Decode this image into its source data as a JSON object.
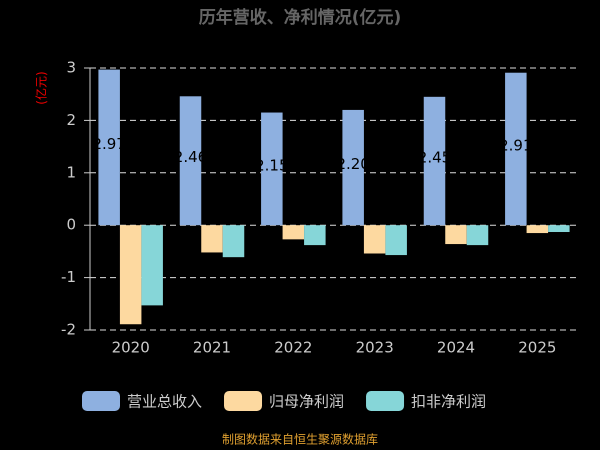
{
  "chart_data": {
    "type": "bar",
    "title": "历年营收、净利情况(亿元)",
    "y_label": "(亿元)",
    "categories": [
      "2020",
      "2021",
      "2022",
      "2023",
      "2024",
      "2025"
    ],
    "series": [
      {
        "name": "营业总收入",
        "color": "#8eb0e0",
        "values": [
          2.97,
          2.46,
          2.15,
          2.2,
          2.45,
          2.91
        ],
        "value_labels": [
          "2.97",
          "2.46",
          "2.15",
          "2.20",
          "2.45",
          "2.91"
        ]
      },
      {
        "name": "归母净利润",
        "color": "#fdd9a0",
        "values": [
          -1.89,
          -0.52,
          -0.27,
          -0.54,
          -0.36,
          -0.15
        ]
      },
      {
        "name": "扣非净利润",
        "color": "#86d6d8",
        "values": [
          -1.53,
          -0.61,
          -0.38,
          -0.57,
          -0.38,
          -0.13
        ]
      }
    ],
    "ylim": [
      -2,
      3
    ],
    "yticks": [
      -2,
      -1,
      0,
      1,
      2,
      3
    ],
    "grid": true,
    "source": "制图数据来自恒生聚源数据库"
  }
}
